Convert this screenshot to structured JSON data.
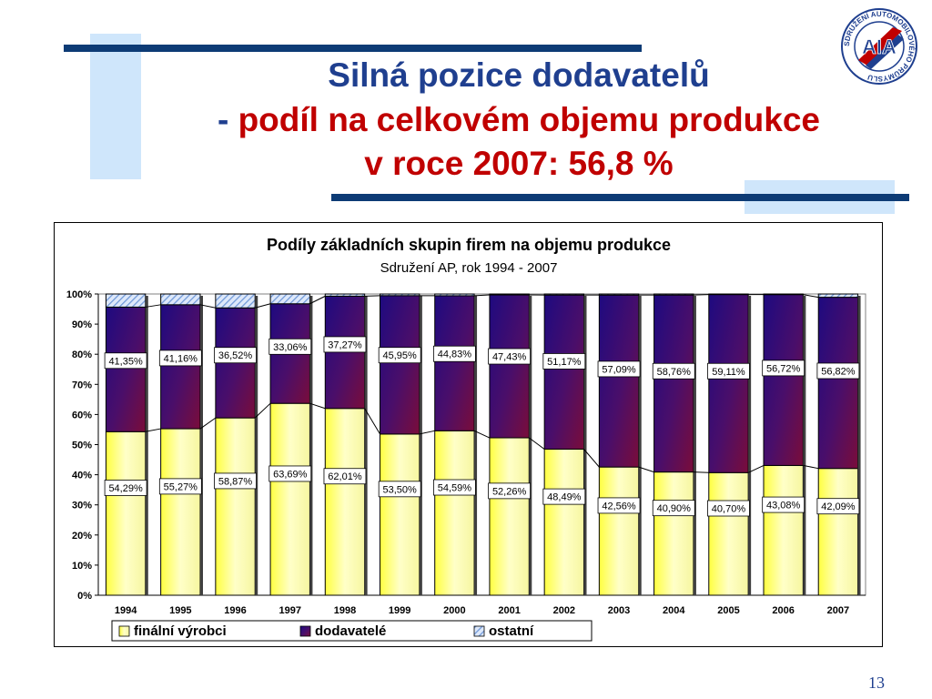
{
  "slide": {
    "title_line1": "Silná pozice dodavatelů",
    "title_dash": "-",
    "title_line2": "podíl na celkovém objemu produkce",
    "title_line3": "v roce 2007: 56,8 %",
    "page_number": "13"
  },
  "logo": {
    "text": "AIA",
    "ring_text": "SDRUŽENÍ AUTOMOBILOVÉHO PRŮMYSLU"
  },
  "colors": {
    "navy": "#0d3b75",
    "light_blue": "#cfe6fb",
    "title_blue": "#1f3f8f",
    "title_red": "#c00000",
    "finalni": "#ffff80",
    "dodavatele": "#5b0f5f",
    "ostatni": "#6f98d8"
  },
  "chart_data": {
    "type": "bar",
    "stacked": true,
    "title": "Podíly základních skupin firem na objemu produkce",
    "subtitle": "Sdružení AP, rok 1994 - 2007",
    "categories": [
      "1994",
      "1995",
      "1996",
      "1997",
      "1998",
      "1999",
      "2000",
      "2001",
      "2002",
      "2003",
      "2004",
      "2005",
      "2006",
      "2007"
    ],
    "y_ticks": [
      "0%",
      "10%",
      "20%",
      "30%",
      "40%",
      "50%",
      "60%",
      "70%",
      "80%",
      "90%",
      "100%"
    ],
    "ylim": [
      0,
      100
    ],
    "grid": false,
    "legend_position": "bottom",
    "series": [
      {
        "name": "finální výrobci",
        "values": [
          54.29,
          55.27,
          58.87,
          63.69,
          62.01,
          53.5,
          54.59,
          52.26,
          48.49,
          42.56,
          40.9,
          40.7,
          43.08,
          42.09
        ],
        "labels": [
          "54,29%",
          "55,27%",
          "58,87%",
          "63,69%",
          "62,01%",
          "53,50%",
          "54,59%",
          "52,26%",
          "48,49%",
          "42,56%",
          "40,90%",
          "40,70%",
          "43,08%",
          "42,09%"
        ]
      },
      {
        "name": "dodavatelé",
        "values": [
          41.35,
          41.16,
          36.52,
          33.06,
          37.27,
          45.95,
          44.83,
          47.43,
          51.17,
          57.09,
          58.76,
          59.11,
          56.72,
          56.82
        ],
        "labels": [
          "41,35%",
          "41,16%",
          "36,52%",
          "33,06%",
          "37,27%",
          "45,95%",
          "44,83%",
          "47,43%",
          "51,17%",
          "57,09%",
          "58,76%",
          "59,11%",
          "56,72%",
          "56,82%"
        ]
      },
      {
        "name": "ostatní",
        "values": [
          4.36,
          3.57,
          4.61,
          3.25,
          0.72,
          0.55,
          0.58,
          0.31,
          0.34,
          0.35,
          0.34,
          0.19,
          0.2,
          1.09
        ]
      }
    ]
  }
}
